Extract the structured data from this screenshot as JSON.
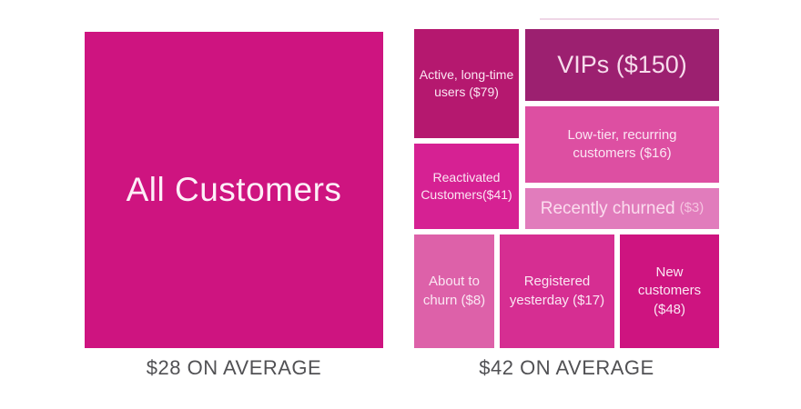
{
  "left_panel": {
    "box": {
      "label": "All Customers",
      "color": "#ce1480"
    },
    "caption": "$28 ON AVERAGE"
  },
  "right_panel": {
    "caption": "$42 ON AVERAGE",
    "boxes": {
      "active": {
        "label": "Active, long-time users ($79)",
        "color": "#b5186f"
      },
      "reactivated": {
        "label": "Reactivated Customers($41)",
        "color": "#d62193"
      },
      "vips": {
        "label": "VIPs ($150)",
        "color": "#9c2070"
      },
      "low_tier": {
        "label": "Low-tier, recurring customers ($16)",
        "color": "#dd4fa2"
      },
      "recently_churned": {
        "label": "Recently churned",
        "value_label": "($3)",
        "color": "#e17cbc"
      },
      "about_to_churn": {
        "label": "About to churn ($8)",
        "color": "#dd61a9"
      },
      "registered": {
        "label": "Registered yesterday ($17)",
        "color": "#d62e92"
      },
      "new_customers": {
        "label": "New customers ($48)",
        "color": "#ce1480"
      }
    }
  },
  "text_colors": {
    "caption": "#515154",
    "on_tile": "#fbe6f3"
  },
  "chart_data": {
    "type": "treemap",
    "title": "",
    "legend": "none",
    "panels": [
      {
        "name": "all-customers",
        "average_label": "$28 ON AVERAGE",
        "average_value": 28,
        "segments": [
          {
            "label": "All Customers",
            "value": 28,
            "color": "#ce1480"
          }
        ]
      },
      {
        "name": "segmented-customers",
        "average_label": "$42 ON AVERAGE",
        "average_value": 42,
        "segments": [
          {
            "label": "Active, long-time users",
            "value": 79,
            "color": "#b5186f"
          },
          {
            "label": "Reactivated Customers",
            "value": 41,
            "color": "#d62193"
          },
          {
            "label": "VIPs",
            "value": 150,
            "color": "#9c2070"
          },
          {
            "label": "Low-tier, recurring customers",
            "value": 16,
            "color": "#dd4fa2"
          },
          {
            "label": "Recently churned",
            "value": 3,
            "color": "#e17cbc"
          },
          {
            "label": "About to churn",
            "value": 8,
            "color": "#dd61a9"
          },
          {
            "label": "Registered yesterday",
            "value": 17,
            "color": "#d62e92"
          },
          {
            "label": "New customers",
            "value": 48,
            "color": "#ce1480"
          }
        ]
      }
    ]
  }
}
